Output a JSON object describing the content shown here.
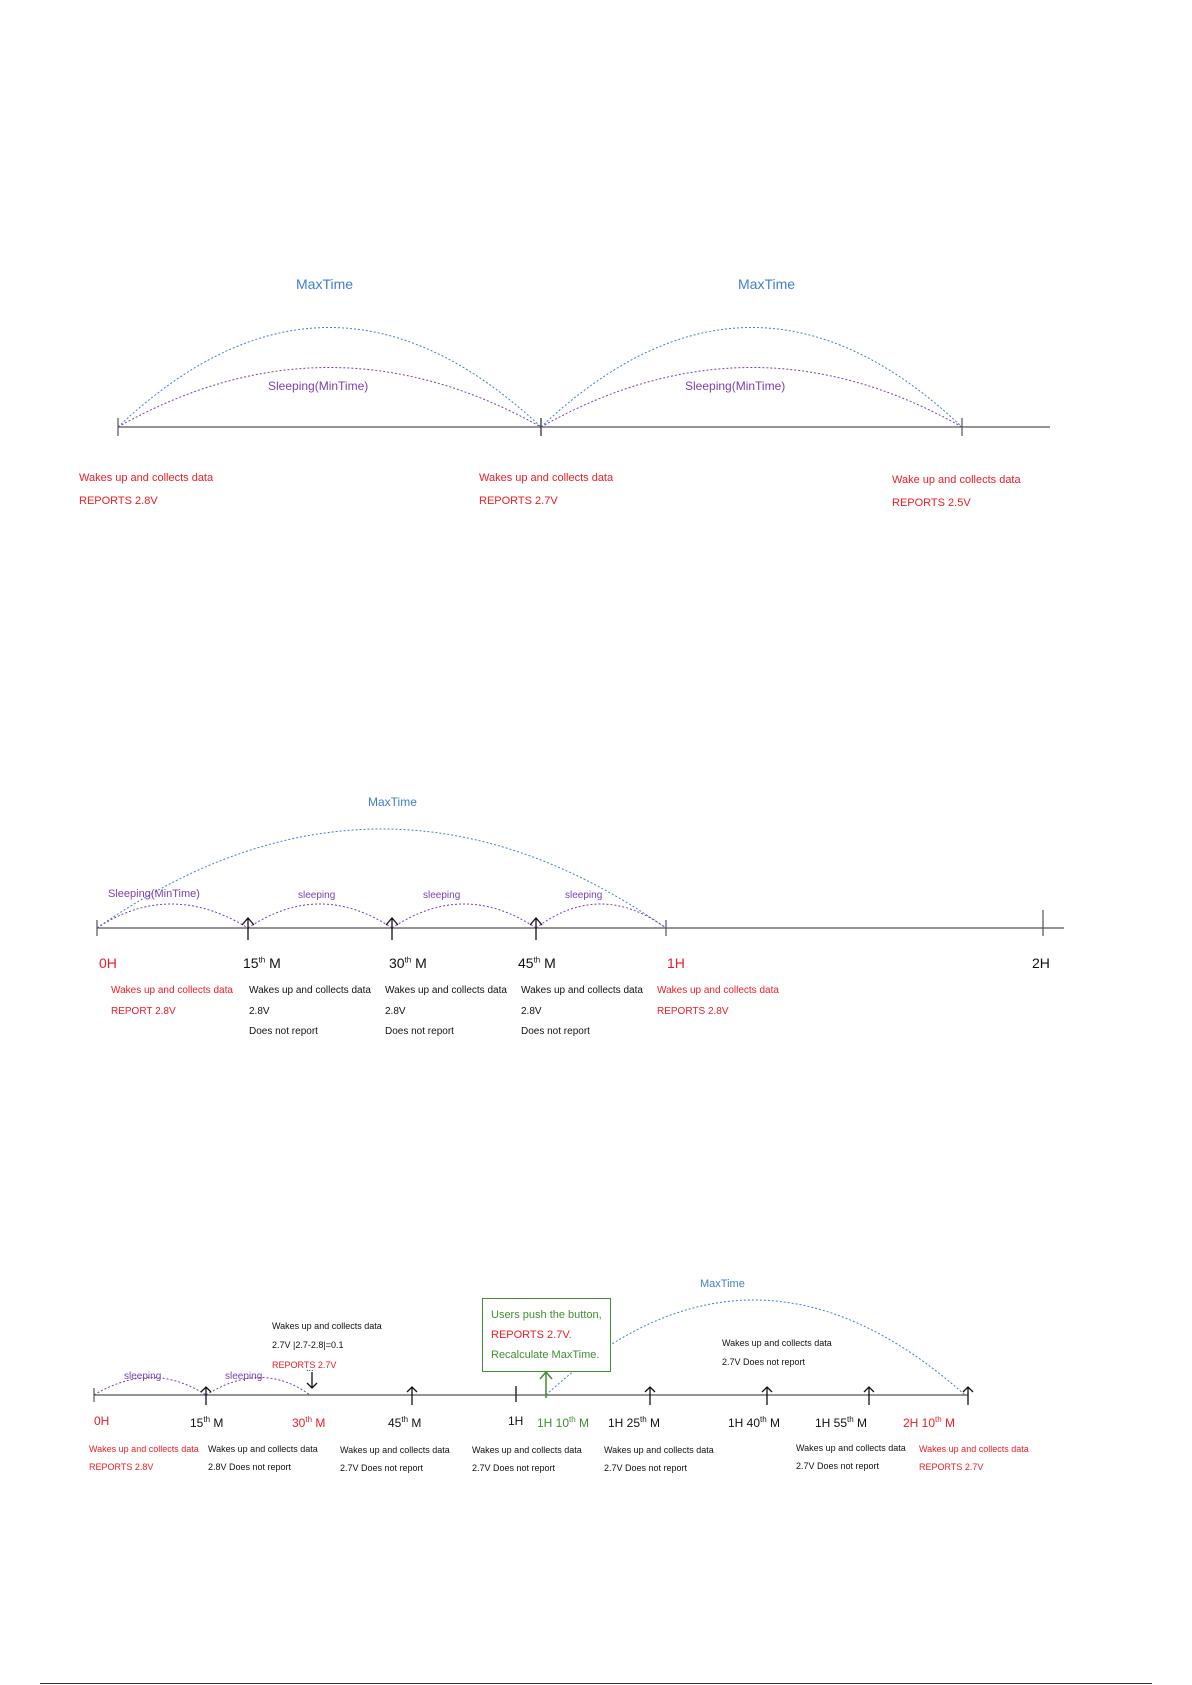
{
  "colors": {
    "red": "#ee1c25",
    "blue": "#3f7fcf",
    "purple": "#7a3fb0",
    "green": "#3f8f2f",
    "axis": "#555555"
  },
  "diagram1": {
    "maxtime_labels": [
      "MaxTime",
      "MaxTime"
    ],
    "sleep_labels": [
      "Sleeping(MinTime)",
      "Sleeping(MinTime)"
    ],
    "events": [
      {
        "line1": "Wakes up and collects data",
        "line2": "REPORTS 2.8V"
      },
      {
        "line1": "Wakes up and collects data",
        "line2": "REPORTS 2.7V"
      },
      {
        "line1": "Wake up and collects data",
        "line2": "REPORTS 2.5V"
      }
    ]
  },
  "diagram2": {
    "maxtime_label": "MaxTime",
    "sleep_labels": [
      "Sleeping(MinTime)",
      "sleeping",
      "sleeping",
      "sleeping"
    ],
    "ticks": [
      {
        "text": "0H",
        "sup": "",
        "suffix": ""
      },
      {
        "text": "15",
        "sup": "th",
        "suffix": " M"
      },
      {
        "text": "30",
        "sup": "th",
        "suffix": " M"
      },
      {
        "text": "45",
        "sup": "th",
        "suffix": " M"
      },
      {
        "text": "1H",
        "sup": "",
        "suffix": ""
      },
      {
        "text": "2H",
        "sup": "",
        "suffix": ""
      }
    ],
    "events": [
      {
        "line1": "Wakes up and collects data",
        "line2": "REPORT 2.8V",
        "line3": ""
      },
      {
        "line1": "Wakes up and collects data",
        "line2": "2.8V",
        "line3": "Does not report"
      },
      {
        "line1": "Wakes up and collects data",
        "line2": "2.8V",
        "line3": "Does not report"
      },
      {
        "line1": "Wakes up and collects data",
        "line2": "2.8V",
        "line3": "Does not report"
      },
      {
        "line1": "Wakes up and collects data",
        "line2": "REPORTS 2.8V",
        "line3": ""
      }
    ]
  },
  "diagram3": {
    "maxtime_label": "MaxTime",
    "sleep_labels": [
      "sleeping",
      "sleeping"
    ],
    "ellipsis": "...",
    "note_30m": {
      "line1": "Wakes up and collects data",
      "line2": "2.7V |2.7-2.8|=0.1",
      "line3": "REPORTS 2.7V"
    },
    "callout": {
      "line1": "Users push the button,",
      "line2": "REPORTS 2.7V.",
      "line3": "Recalculate MaxTime."
    },
    "note_after": {
      "line1": "Wakes up and collects data",
      "line2": "2.7V Does not report"
    },
    "ticks": [
      {
        "pre": "0H",
        "sup": "",
        "suffix": ""
      },
      {
        "pre": "15",
        "sup": "th",
        "suffix": " M"
      },
      {
        "pre": "30",
        "sup": "th",
        "suffix": " M"
      },
      {
        "pre": "45",
        "sup": "th",
        "suffix": " M"
      },
      {
        "pre": "1H",
        "sup": "",
        "suffix": ""
      },
      {
        "pre": "1H 10",
        "sup": "th",
        "suffix": " M"
      },
      {
        "pre": "1H 25",
        "sup": "th",
        "suffix": " M"
      },
      {
        "pre": "1H 40",
        "sup": "th",
        "suffix": " M"
      },
      {
        "pre": "1H 55",
        "sup": "th",
        "suffix": " M"
      },
      {
        "pre": "2H 10",
        "sup": "th",
        "suffix": " M"
      }
    ],
    "events": [
      {
        "line1": "Wakes up and collects data",
        "line2": "REPORTS 2.8V"
      },
      {
        "line1": "Wakes up and collects data",
        "line2": "2.8V Does not report"
      },
      {
        "line1": "Wakes up and collects data",
        "line2": "2.7V Does not report"
      },
      {
        "line1": "Wakes up and collects data",
        "line2": "2.7V Does not report"
      },
      {
        "line1": "Wakes  up  and  collects  data",
        "line2": "2.7V Does not report"
      },
      {
        "line1": "Wakes up and collects data",
        "line2": "2.7V Does not report"
      },
      {
        "line1": "Wakes  up  and  collects  data",
        "line2": "REPORTS 2.7V"
      }
    ]
  }
}
